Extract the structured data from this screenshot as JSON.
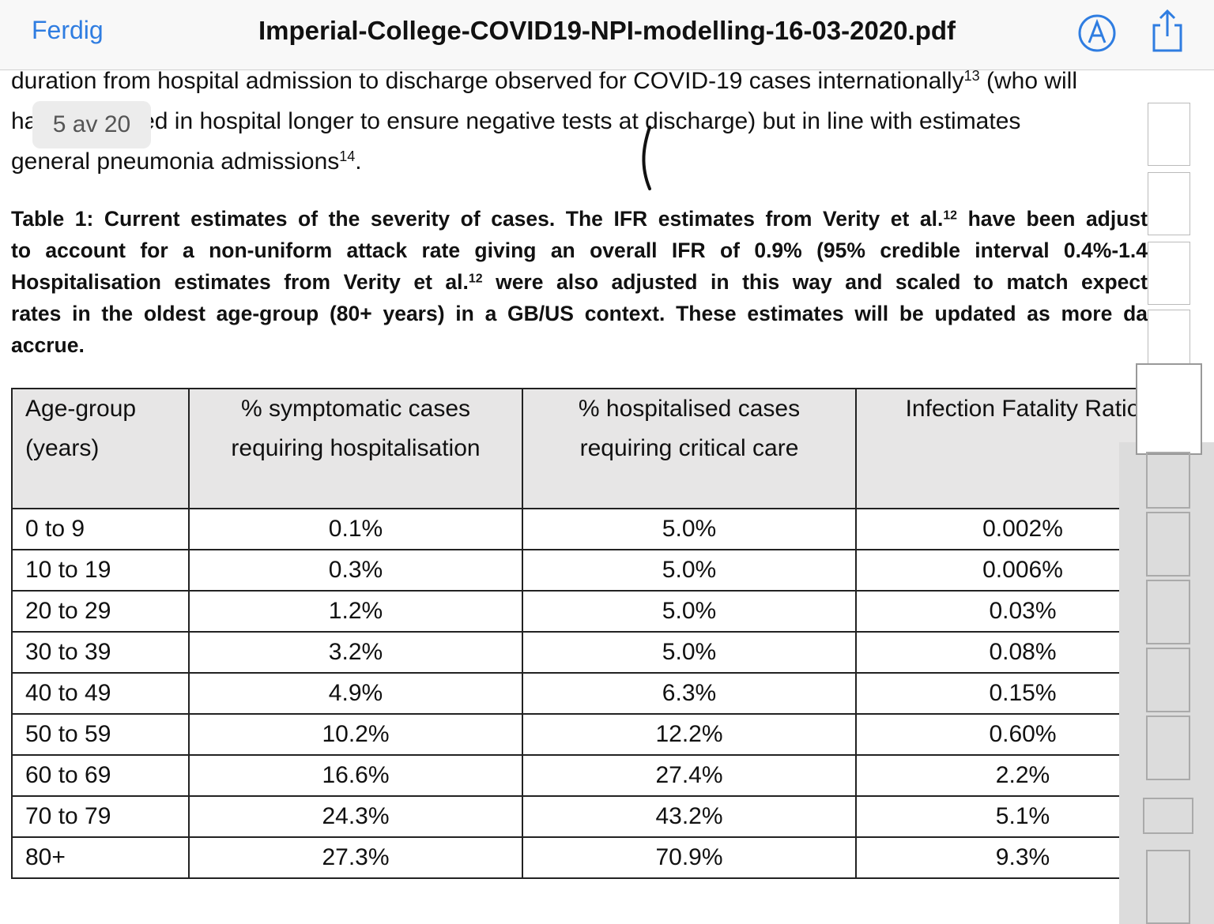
{
  "toolbar": {
    "done": "Ferdig",
    "filename": "Imperial-College-COVID19-NPI-modelling-16-03-2020.pdf"
  },
  "page_indicator": "5 av 20",
  "paragraph": {
    "lines": [
      [
        {
          "text": "duration from hospital admission to discharge observed for COVID-19 cases internationally"
        },
        {
          "sup": "13"
        },
        {
          "text": " (who will"
        }
      ],
      [
        {
          "text": "have remained in hospital longer to ensure negative tests at discharge) but in line with estimates"
        }
      ],
      [
        {
          "text": "general pneumonia admissions"
        },
        {
          "sup": "14"
        },
        {
          "text": "."
        }
      ]
    ]
  },
  "caption": {
    "lines": [
      [
        {
          "text": "Table 1: Current estimates of the severity of cases. The IFR estimates from Verity et al."
        },
        {
          "sup": "12"
        },
        {
          "text": " have been adjust"
        }
      ],
      [
        {
          "text": "to account for a non-uniform attack rate giving an overall IFR of 0.9% (95% credible interval 0.4%-1.4"
        }
      ],
      [
        {
          "text": "Hospitalisation estimates from Verity et al."
        },
        {
          "sup": "12"
        },
        {
          "text": " were also adjusted in this way and scaled to match expect"
        }
      ],
      [
        {
          "text": "rates in the oldest age-group (80+ years) in a GB/US context. These estimates will be updated as more da"
        }
      ],
      [
        {
          "text": "accrue."
        }
      ]
    ]
  },
  "table": {
    "headers": [
      [
        "Age-group",
        "(years)"
      ],
      [
        "% symptomatic cases",
        "requiring hospitalisation"
      ],
      [
        "% hospitalised cases",
        "requiring critical care"
      ],
      [
        "Infection Fatality Ratio"
      ]
    ],
    "rows": [
      [
        "0 to 9",
        "0.1%",
        "5.0%",
        "0.002%"
      ],
      [
        "10 to 19",
        "0.3%",
        "5.0%",
        "0.006%"
      ],
      [
        "20 to 29",
        "1.2%",
        "5.0%",
        "0.03%"
      ],
      [
        "30 to 39",
        "3.2%",
        "5.0%",
        "0.08%"
      ],
      [
        "40 to 49",
        "4.9%",
        "6.3%",
        "0.15%"
      ],
      [
        "50 to 59",
        "10.2%",
        "12.2%",
        "0.60%"
      ],
      [
        "60 to 69",
        "16.6%",
        "27.4%",
        "2.2%"
      ],
      [
        "70 to 79",
        "24.3%",
        "43.2%",
        "5.1%"
      ],
      [
        "80+",
        "27.3%",
        "70.9%",
        "9.3%"
      ]
    ]
  }
}
